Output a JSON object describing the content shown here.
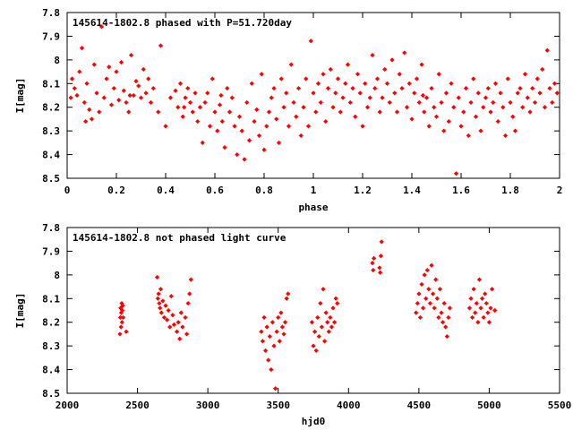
{
  "chart_data": [
    {
      "type": "scatter",
      "title": "145614-1802.8 phased with P=51.720day",
      "xlabel": "phase",
      "ylabel": "I[mag]",
      "xlim": [
        0,
        2
      ],
      "ylim": [
        7.8,
        8.5
      ],
      "y_inverted": true,
      "grid": false,
      "marker_color": "#ff0000",
      "xticks": [
        "0",
        "0.2",
        "0.4",
        "0.6",
        "0.8",
        "1",
        "1.2",
        "1.4",
        "1.6",
        "1.8",
        "2"
      ],
      "yticks": [
        "7.8",
        "7.9",
        "8",
        "8.1",
        "8.2",
        "8.3",
        "8.4",
        "8.5"
      ],
      "points": [
        [
          0.02,
          8.08
        ],
        [
          0.03,
          8.12
        ],
        [
          0.04,
          8.15
        ],
        [
          0.05,
          8.05
        ],
        [
          0.06,
          7.95
        ],
        [
          0.07,
          8.18
        ],
        [
          0.08,
          8.1
        ],
        [
          0.09,
          8.21
        ],
        [
          0.1,
          8.25
        ],
        [
          0.11,
          8.02
        ],
        [
          0.12,
          8.14
        ],
        [
          0.13,
          8.22
        ],
        [
          0.14,
          7.86
        ],
        [
          0.15,
          8.16
        ],
        [
          0.16,
          8.08
        ],
        [
          0.17,
          8.03
        ],
        [
          0.18,
          8.19
        ],
        [
          0.19,
          8.12
        ],
        [
          0.2,
          8.05
        ],
        [
          0.21,
          8.17
        ],
        [
          0.22,
          8.01
        ],
        [
          0.23,
          8.13
        ],
        [
          0.24,
          8.18
        ],
        [
          0.25,
          8.22
        ],
        [
          0.26,
          7.98
        ],
        [
          0.27,
          8.15
        ],
        [
          0.28,
          8.09
        ],
        [
          0.29,
          8.11
        ],
        [
          0.3,
          8.16
        ],
        [
          0.31,
          8.04
        ],
        [
          0.32,
          8.14
        ],
        [
          0.33,
          8.08
        ],
        [
          0.34,
          8.18
        ],
        [
          0.35,
          8.12
        ],
        [
          0.37,
          8.22
        ],
        [
          0.38,
          7.94
        ],
        [
          0.4,
          8.28
        ],
        [
          0.42,
          8.16
        ],
        [
          0.44,
          8.13
        ],
        [
          0.45,
          8.2
        ],
        [
          0.46,
          8.1
        ],
        [
          0.47,
          8.24
        ],
        [
          0.48,
          8.16
        ],
        [
          0.49,
          8.12
        ],
        [
          0.5,
          8.18
        ],
        [
          0.51,
          8.22
        ],
        [
          0.52,
          8.14
        ],
        [
          0.53,
          8.26
        ],
        [
          0.54,
          8.2
        ],
        [
          0.55,
          8.35
        ],
        [
          0.56,
          8.18
        ],
        [
          0.57,
          8.14
        ],
        [
          0.58,
          8.28
        ],
        [
          0.59,
          8.08
        ],
        [
          0.6,
          8.22
        ],
        [
          0.61,
          8.3
        ],
        [
          0.62,
          8.19
        ],
        [
          0.63,
          8.26
        ],
        [
          0.64,
          8.37
        ],
        [
          0.65,
          8.12
        ],
        [
          0.66,
          8.22
        ],
        [
          0.67,
          8.16
        ],
        [
          0.68,
          8.28
        ],
        [
          0.69,
          8.4
        ],
        [
          0.7,
          8.24
        ],
        [
          0.71,
          8.3
        ],
        [
          0.72,
          8.42
        ],
        [
          0.73,
          8.18
        ],
        [
          0.74,
          8.34
        ],
        [
          0.75,
          8.1
        ],
        [
          0.76,
          8.26
        ],
        [
          0.77,
          8.21
        ],
        [
          0.78,
          8.32
        ],
        [
          0.79,
          8.06
        ],
        [
          0.8,
          8.38
        ],
        [
          0.81,
          8.28
        ],
        [
          0.82,
          8.22
        ],
        [
          0.83,
          8.16
        ],
        [
          0.84,
          8.12
        ],
        [
          0.85,
          8.25
        ],
        [
          0.86,
          8.35
        ],
        [
          0.87,
          8.08
        ],
        [
          0.88,
          8.2
        ],
        [
          0.89,
          8.14
        ],
        [
          0.9,
          8.28
        ],
        [
          0.91,
          8.02
        ],
        [
          0.92,
          8.18
        ],
        [
          0.93,
          8.24
        ],
        [
          0.94,
          8.12
        ],
        [
          0.95,
          8.32
        ],
        [
          0.96,
          8.2
        ],
        [
          0.97,
          8.08
        ],
        [
          0.98,
          8.28
        ],
        [
          0.99,
          7.92
        ],
        [
          1.0,
          8.14
        ],
        [
          1.01,
          8.22
        ],
        [
          1.02,
          8.1
        ],
        [
          1.03,
          8.18
        ],
        [
          1.04,
          8.06
        ],
        [
          1.05,
          8.26
        ],
        [
          1.06,
          8.12
        ],
        [
          1.07,
          8.04
        ],
        [
          1.08,
          8.2
        ],
        [
          1.09,
          8.14
        ],
        [
          1.1,
          8.08
        ],
        [
          1.11,
          8.22
        ],
        [
          1.12,
          8.16
        ],
        [
          1.13,
          8.1
        ],
        [
          1.14,
          8.02
        ],
        [
          1.15,
          8.18
        ],
        [
          1.16,
          8.12
        ],
        [
          1.17,
          8.24
        ],
        [
          1.18,
          8.06
        ],
        [
          1.19,
          8.14
        ],
        [
          1.2,
          8.28
        ],
        [
          1.21,
          8.1
        ],
        [
          1.22,
          8.2
        ],
        [
          1.23,
          8.16
        ],
        [
          1.24,
          7.98
        ],
        [
          1.25,
          8.12
        ],
        [
          1.26,
          8.08
        ],
        [
          1.27,
          8.22
        ],
        [
          1.28,
          8.16
        ],
        [
          1.29,
          8.04
        ],
        [
          1.3,
          8.1
        ],
        [
          1.31,
          8.18
        ],
        [
          1.32,
          8.0
        ],
        [
          1.33,
          8.14
        ],
        [
          1.34,
          8.22
        ],
        [
          1.35,
          8.06
        ],
        [
          1.36,
          8.12
        ],
        [
          1.37,
          7.97
        ],
        [
          1.38,
          8.2
        ],
        [
          1.39,
          8.1
        ],
        [
          1.4,
          8.25
        ],
        [
          1.41,
          8.14
        ],
        [
          1.42,
          8.08
        ],
        [
          1.43,
          8.18
        ],
        [
          1.44,
          8.02
        ],
        [
          1.45,
          8.22
        ],
        [
          1.46,
          8.16
        ],
        [
          1.47,
          8.28
        ],
        [
          1.48,
          8.12
        ],
        [
          1.49,
          8.2
        ],
        [
          1.5,
          8.24
        ],
        [
          1.51,
          8.06
        ],
        [
          1.52,
          8.18
        ],
        [
          1.53,
          8.3
        ],
        [
          1.54,
          8.14
        ],
        [
          1.55,
          8.26
        ],
        [
          1.56,
          8.1
        ],
        [
          1.57,
          8.2
        ],
        [
          1.58,
          8.48
        ],
        [
          1.59,
          8.16
        ],
        [
          1.6,
          8.28
        ],
        [
          1.61,
          8.22
        ],
        [
          1.62,
          8.12
        ],
        [
          1.63,
          8.32
        ],
        [
          1.64,
          8.18
        ],
        [
          1.65,
          8.08
        ],
        [
          1.66,
          8.24
        ],
        [
          1.67,
          8.14
        ],
        [
          1.68,
          8.3
        ],
        [
          1.69,
          8.2
        ],
        [
          1.7,
          8.16
        ],
        [
          1.71,
          8.12
        ],
        [
          1.72,
          8.22
        ],
        [
          1.73,
          8.18
        ],
        [
          1.74,
          8.1
        ],
        [
          1.75,
          8.26
        ],
        [
          1.76,
          8.14
        ],
        [
          1.77,
          8.2
        ],
        [
          1.78,
          8.32
        ],
        [
          1.79,
          8.08
        ],
        [
          1.8,
          8.18
        ],
        [
          1.81,
          8.24
        ],
        [
          1.82,
          8.3
        ],
        [
          1.83,
          8.14
        ],
        [
          1.84,
          8.12
        ],
        [
          1.85,
          8.2
        ],
        [
          1.86,
          8.06
        ],
        [
          1.87,
          8.16
        ],
        [
          1.88,
          8.22
        ],
        [
          1.89,
          8.12
        ],
        [
          1.9,
          8.18
        ],
        [
          1.91,
          8.08
        ],
        [
          1.92,
          8.14
        ],
        [
          1.93,
          8.04
        ],
        [
          1.94,
          8.2
        ],
        [
          1.95,
          7.96
        ],
        [
          1.96,
          8.12
        ],
        [
          1.97,
          8.18
        ],
        [
          1.98,
          8.1
        ],
        [
          1.99,
          8.14
        ],
        [
          0.015,
          8.16
        ],
        [
          0.075,
          8.26
        ],
        [
          0.255,
          8.15
        ],
        [
          0.475,
          8.2
        ],
        [
          0.625,
          8.15
        ],
        [
          1.445,
          8.15
        ]
      ]
    },
    {
      "type": "scatter",
      "title": "145614-1802.8 not phased light curve",
      "xlabel": "hjd0",
      "ylabel": "I[mag]",
      "xlim": [
        2000,
        5500
      ],
      "ylim": [
        7.8,
        8.5
      ],
      "y_inverted": true,
      "grid": false,
      "marker_color": "#ff0000",
      "xticks": [
        "2000",
        "2500",
        "3000",
        "3500",
        "4000",
        "4500",
        "5000",
        "5500"
      ],
      "yticks": [
        "7.8",
        "7.9",
        "8",
        "8.1",
        "8.2",
        "8.3",
        "8.4",
        "8.5"
      ],
      "points": [
        [
          2375,
          8.25
        ],
        [
          2378,
          8.18
        ],
        [
          2380,
          8.14
        ],
        [
          2383,
          8.22
        ],
        [
          2385,
          8.16
        ],
        [
          2388,
          8.12
        ],
        [
          2390,
          8.2
        ],
        [
          2392,
          8.15
        ],
        [
          2395,
          8.13
        ],
        [
          2398,
          8.18
        ],
        [
          2420,
          8.24
        ],
        [
          2640,
          8.01
        ],
        [
          2645,
          8.1
        ],
        [
          2650,
          8.08
        ],
        [
          2655,
          8.12
        ],
        [
          2660,
          8.14
        ],
        [
          2665,
          8.06
        ],
        [
          2670,
          8.16
        ],
        [
          2680,
          8.11
        ],
        [
          2690,
          8.18
        ],
        [
          2700,
          8.13
        ],
        [
          2710,
          8.19
        ],
        [
          2720,
          8.15
        ],
        [
          2730,
          8.22
        ],
        [
          2740,
          8.09
        ],
        [
          2750,
          8.17
        ],
        [
          2760,
          8.21
        ],
        [
          2780,
          8.24
        ],
        [
          2790,
          8.2
        ],
        [
          2800,
          8.27
        ],
        [
          2810,
          8.16
        ],
        [
          2820,
          8.22
        ],
        [
          2840,
          8.18
        ],
        [
          2850,
          8.25
        ],
        [
          2860,
          8.12
        ],
        [
          2870,
          8.08
        ],
        [
          2880,
          8.02
        ],
        [
          3380,
          8.24
        ],
        [
          3390,
          8.28
        ],
        [
          3400,
          8.18
        ],
        [
          3410,
          8.32
        ],
        [
          3420,
          8.22
        ],
        [
          3430,
          8.36
        ],
        [
          3440,
          8.26
        ],
        [
          3450,
          8.4
        ],
        [
          3460,
          8.2
        ],
        [
          3470,
          8.3
        ],
        [
          3480,
          8.48
        ],
        [
          3490,
          8.24
        ],
        [
          3500,
          8.18
        ],
        [
          3510,
          8.28
        ],
        [
          3520,
          8.16
        ],
        [
          3530,
          8.22
        ],
        [
          3540,
          8.25
        ],
        [
          3550,
          8.2
        ],
        [
          3560,
          8.1
        ],
        [
          3570,
          8.08
        ],
        [
          3740,
          8.2
        ],
        [
          3750,
          8.3
        ],
        [
          3760,
          8.24
        ],
        [
          3770,
          8.32
        ],
        [
          3780,
          8.18
        ],
        [
          3790,
          8.26
        ],
        [
          3800,
          8.12
        ],
        [
          3810,
          8.22
        ],
        [
          3820,
          8.06
        ],
        [
          3830,
          8.28
        ],
        [
          3840,
          8.16
        ],
        [
          3850,
          8.2
        ],
        [
          3860,
          8.24
        ],
        [
          3870,
          8.18
        ],
        [
          3880,
          8.22
        ],
        [
          3890,
          8.14
        ],
        [
          3900,
          8.2
        ],
        [
          3910,
          8.1
        ],
        [
          3920,
          8.12
        ],
        [
          4170,
          7.95
        ],
        [
          4175,
          7.98
        ],
        [
          4180,
          7.93
        ],
        [
          4220,
          7.97
        ],
        [
          4225,
          7.99
        ],
        [
          4230,
          7.92
        ],
        [
          4235,
          7.86
        ],
        [
          4480,
          8.16
        ],
        [
          4490,
          8.12
        ],
        [
          4500,
          8.08
        ],
        [
          4510,
          8.18
        ],
        [
          4520,
          8.04
        ],
        [
          4530,
          8.14
        ],
        [
          4540,
          8.0
        ],
        [
          4550,
          8.1
        ],
        [
          4560,
          7.98
        ],
        [
          4570,
          8.06
        ],
        [
          4580,
          8.12
        ],
        [
          4590,
          7.96
        ],
        [
          4600,
          8.08
        ],
        [
          4610,
          8.14
        ],
        [
          4620,
          8.02
        ],
        [
          4630,
          8.1
        ],
        [
          4640,
          8.18
        ],
        [
          4650,
          8.06
        ],
        [
          4660,
          8.16
        ],
        [
          4670,
          8.2
        ],
        [
          4680,
          8.12
        ],
        [
          4690,
          8.22
        ],
        [
          4700,
          8.26
        ],
        [
          4710,
          8.18
        ],
        [
          4720,
          8.14
        ],
        [
          4860,
          8.14
        ],
        [
          4870,
          8.1
        ],
        [
          4880,
          8.18
        ],
        [
          4890,
          8.06
        ],
        [
          4900,
          8.16
        ],
        [
          4910,
          8.12
        ],
        [
          4920,
          8.2
        ],
        [
          4930,
          8.02
        ],
        [
          4940,
          8.14
        ],
        [
          4950,
          8.1
        ],
        [
          4960,
          8.18
        ],
        [
          4970,
          8.08
        ],
        [
          4980,
          8.12
        ],
        [
          4990,
          8.16
        ],
        [
          5000,
          8.2
        ],
        [
          5010,
          8.14
        ],
        [
          5020,
          8.06
        ],
        [
          5040,
          8.15
        ]
      ]
    }
  ]
}
